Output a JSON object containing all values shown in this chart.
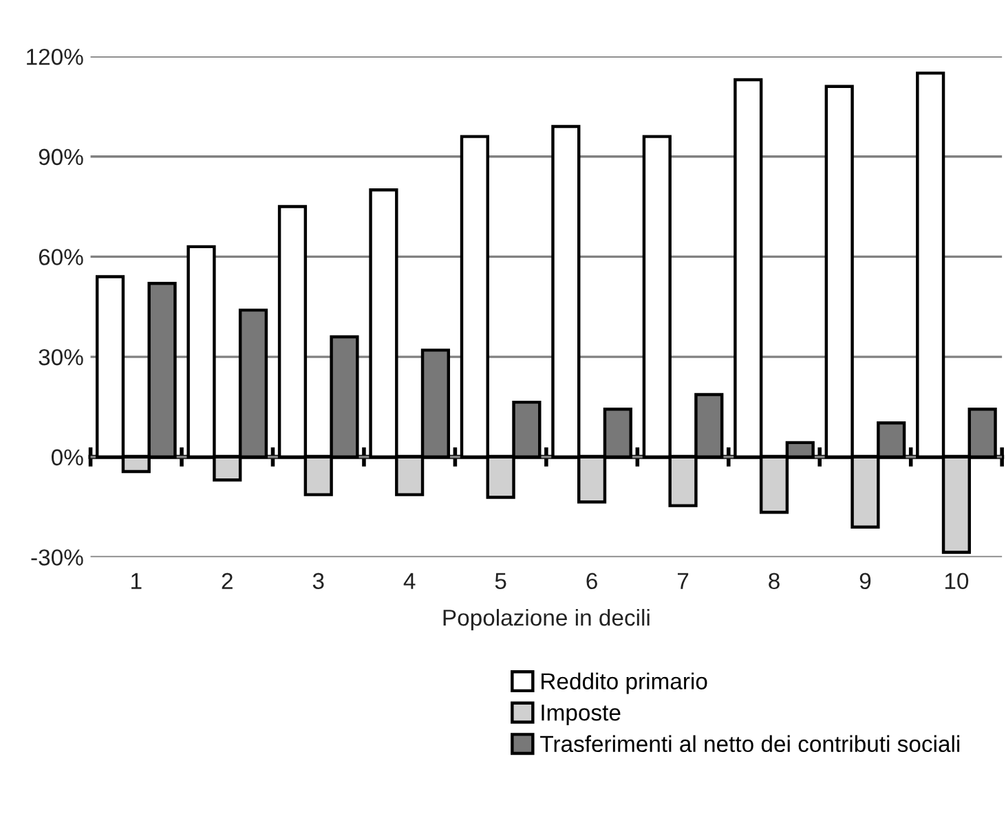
{
  "chart_data": {
    "type": "bar",
    "xlabel": "Popolazione in decili",
    "categories": [
      "1",
      "2",
      "3",
      "4",
      "5",
      "6",
      "7",
      "8",
      "9",
      "10"
    ],
    "series": [
      {
        "name": "Reddito primario",
        "color": "#ffffff",
        "values": [
          54,
          63,
          75,
          80,
          96,
          99,
          96,
          113,
          111,
          115
        ]
      },
      {
        "name": "Imposte",
        "color": "#d0d0d0",
        "values": [
          -4.4,
          -6.9,
          -11.3,
          -11.3,
          -12.1,
          -13.5,
          -14.6,
          -16.6,
          -21,
          -28.6
        ]
      },
      {
        "name": "Trasferimenti al netto dei contributi sociali",
        "color": "#787878",
        "values": [
          52,
          44,
          36,
          32,
          16.4,
          14.3,
          18.7,
          4.3,
          10.2,
          14.3
        ]
      }
    ],
    "ylim": [
      -30,
      120
    ],
    "yticks": [
      {
        "value": -30,
        "label": "-30%"
      },
      {
        "value": 0,
        "label": "0%"
      },
      {
        "value": 30,
        "label": "30%"
      },
      {
        "value": 60,
        "label": "60%"
      },
      {
        "value": 90,
        "label": "90%"
      },
      {
        "value": 120,
        "label": "120%"
      }
    ],
    "grid": "y",
    "legend": "bottom"
  }
}
